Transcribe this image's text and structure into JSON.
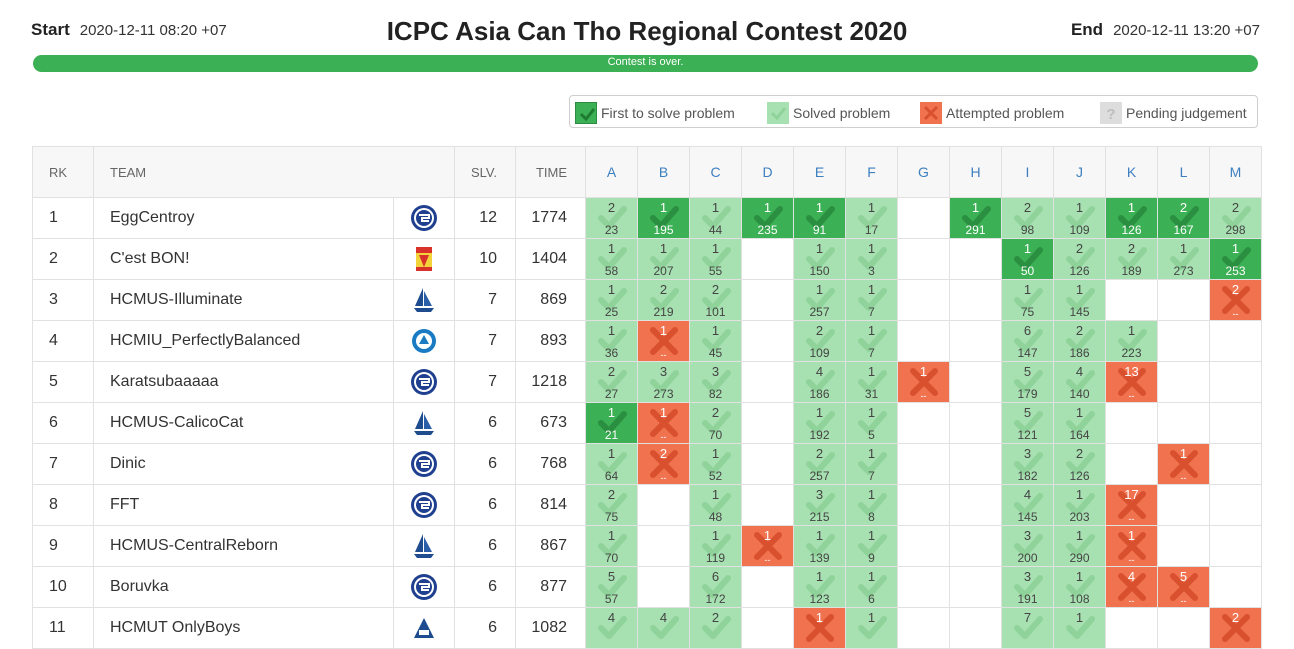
{
  "header": {
    "start_label": "Start",
    "start_value": "2020-12-11 08:20 +07",
    "title": "ICPC Asia Can Tho Regional Contest 2020",
    "end_label": "End",
    "end_value": "2020-12-11 13:20 +07",
    "progress_text": "Contest is over.",
    "progress_fraction": 1.0
  },
  "legend": {
    "first": "First to solve problem",
    "solved": "Solved problem",
    "attempted": "Attempted problem",
    "pending": "Pending judgement"
  },
  "colors": {
    "first": "#3cb054",
    "solved": "#a7e0b1",
    "attempted": "#f0724f",
    "pending": "#dddddd",
    "progress": "#3cb054",
    "header_link": "#3d7fbf"
  },
  "columns": {
    "rank": "RK",
    "team": "TEAM",
    "solved": "SLV.",
    "time": "TIME",
    "problems": [
      "A",
      "B",
      "C",
      "D",
      "E",
      "F",
      "G",
      "H",
      "I",
      "J",
      "K",
      "L",
      "M"
    ]
  },
  "rows": [
    {
      "rank": "1",
      "team": "EggCentroy",
      "logo": "university-logo-blue-circle",
      "solved": "12",
      "time": "1774",
      "cells": [
        [
          "S",
          "2",
          "23"
        ],
        [
          "F",
          "1",
          "195"
        ],
        [
          "S",
          "1",
          "44"
        ],
        [
          "F",
          "1",
          "235"
        ],
        [
          "F",
          "1",
          "91"
        ],
        [
          "S",
          "1",
          "17"
        ],
        null,
        [
          "F",
          "1",
          "291"
        ],
        [
          "S",
          "2",
          "98"
        ],
        [
          "S",
          "1",
          "109"
        ],
        [
          "F",
          "1",
          "126"
        ],
        [
          "F",
          "2",
          "167"
        ],
        [
          "S",
          "2",
          "298"
        ]
      ]
    },
    {
      "rank": "2",
      "team": "C'est BON!",
      "logo": "university-logo-red-yellow",
      "solved": "10",
      "time": "1404",
      "cells": [
        [
          "S",
          "1",
          "58"
        ],
        [
          "S",
          "1",
          "207"
        ],
        [
          "S",
          "1",
          "55"
        ],
        null,
        [
          "S",
          "1",
          "150"
        ],
        [
          "S",
          "1",
          "3"
        ],
        null,
        null,
        [
          "F",
          "1",
          "50"
        ],
        [
          "S",
          "2",
          "126"
        ],
        [
          "S",
          "2",
          "189"
        ],
        [
          "S",
          "1",
          "273"
        ],
        [
          "F",
          "1",
          "253"
        ]
      ]
    },
    {
      "rank": "3",
      "team": "HCMUS-Illuminate",
      "logo": "university-logo-blue-sail",
      "solved": "7",
      "time": "869",
      "cells": [
        [
          "S",
          "1",
          "25"
        ],
        [
          "S",
          "2",
          "219"
        ],
        [
          "S",
          "2",
          "101"
        ],
        null,
        [
          "S",
          "1",
          "257"
        ],
        [
          "S",
          "1",
          "7"
        ],
        null,
        null,
        [
          "S",
          "1",
          "75"
        ],
        [
          "S",
          "1",
          "145"
        ],
        null,
        null,
        [
          "A",
          "2",
          "--"
        ]
      ]
    },
    {
      "rank": "4",
      "team": "HCMIU_PerfectlyBalanced",
      "logo": "university-logo-blue-round",
      "solved": "7",
      "time": "893",
      "cells": [
        [
          "S",
          "1",
          "36"
        ],
        [
          "A",
          "1",
          "--"
        ],
        [
          "S",
          "1",
          "45"
        ],
        null,
        [
          "S",
          "2",
          "109"
        ],
        [
          "S",
          "1",
          "7"
        ],
        null,
        null,
        [
          "S",
          "6",
          "147"
        ],
        [
          "S",
          "2",
          "186"
        ],
        [
          "S",
          "1",
          "223"
        ],
        null,
        null
      ]
    },
    {
      "rank": "5",
      "team": "Karatsubaaaaa",
      "logo": "university-logo-blue-circle",
      "solved": "7",
      "time": "1218",
      "cells": [
        [
          "S",
          "2",
          "27"
        ],
        [
          "S",
          "3",
          "273"
        ],
        [
          "S",
          "3",
          "82"
        ],
        null,
        [
          "S",
          "4",
          "186"
        ],
        [
          "S",
          "1",
          "31"
        ],
        [
          "A",
          "1",
          "--"
        ],
        null,
        [
          "S",
          "5",
          "179"
        ],
        [
          "S",
          "4",
          "140"
        ],
        [
          "A",
          "13",
          "--"
        ],
        null,
        null
      ]
    },
    {
      "rank": "6",
      "team": "HCMUS-CalicoCat",
      "logo": "university-logo-blue-sail",
      "solved": "6",
      "time": "673",
      "cells": [
        [
          "F",
          "1",
          "21"
        ],
        [
          "A",
          "1",
          "--"
        ],
        [
          "S",
          "2",
          "70"
        ],
        null,
        [
          "S",
          "1",
          "192"
        ],
        [
          "S",
          "1",
          "5"
        ],
        null,
        null,
        [
          "S",
          "5",
          "121"
        ],
        [
          "S",
          "1",
          "164"
        ],
        null,
        null,
        null
      ]
    },
    {
      "rank": "7",
      "team": "Dinic",
      "logo": "university-logo-blue-circle",
      "solved": "6",
      "time": "768",
      "cells": [
        [
          "S",
          "1",
          "64"
        ],
        [
          "A",
          "2",
          "--"
        ],
        [
          "S",
          "1",
          "52"
        ],
        null,
        [
          "S",
          "2",
          "257"
        ],
        [
          "S",
          "1",
          "7"
        ],
        null,
        null,
        [
          "S",
          "3",
          "182"
        ],
        [
          "S",
          "2",
          "126"
        ],
        null,
        [
          "A",
          "1",
          "--"
        ],
        null
      ]
    },
    {
      "rank": "8",
      "team": "FFT",
      "logo": "university-logo-blue-circle",
      "solved": "6",
      "time": "814",
      "cells": [
        [
          "S",
          "2",
          "75"
        ],
        null,
        [
          "S",
          "1",
          "48"
        ],
        null,
        [
          "S",
          "3",
          "215"
        ],
        [
          "S",
          "1",
          "8"
        ],
        null,
        null,
        [
          "S",
          "4",
          "145"
        ],
        [
          "S",
          "1",
          "203"
        ],
        [
          "A",
          "17",
          "--"
        ],
        null,
        null
      ]
    },
    {
      "rank": "9",
      "team": "HCMUS-CentralReborn",
      "logo": "university-logo-blue-sail",
      "solved": "6",
      "time": "867",
      "cells": [
        [
          "S",
          "1",
          "70"
        ],
        null,
        [
          "S",
          "1",
          "119"
        ],
        [
          "A",
          "1",
          "--"
        ],
        [
          "S",
          "1",
          "139"
        ],
        [
          "S",
          "1",
          "9"
        ],
        null,
        null,
        [
          "S",
          "3",
          "200"
        ],
        [
          "S",
          "1",
          "290"
        ],
        [
          "A",
          "1",
          "--"
        ],
        null,
        null
      ]
    },
    {
      "rank": "10",
      "team": "Boruvka",
      "logo": "university-logo-blue-circle",
      "solved": "6",
      "time": "877",
      "cells": [
        [
          "S",
          "5",
          "57"
        ],
        null,
        [
          "S",
          "6",
          "172"
        ],
        null,
        [
          "S",
          "1",
          "123"
        ],
        [
          "S",
          "1",
          "6"
        ],
        null,
        null,
        [
          "S",
          "3",
          "191"
        ],
        [
          "S",
          "1",
          "108"
        ],
        [
          "A",
          "4",
          "--"
        ],
        [
          "A",
          "5",
          "--"
        ],
        null
      ]
    },
    {
      "rank": "11",
      "team": "HCMUT OnlyBoys",
      "logo": "university-logo-blue-bk",
      "solved": "6",
      "time": "1082",
      "cells": [
        [
          "S",
          "4",
          ""
        ],
        [
          "S",
          "4",
          ""
        ],
        [
          "S",
          "2",
          ""
        ],
        null,
        [
          "A",
          "1",
          ""
        ],
        [
          "S",
          "1",
          ""
        ],
        null,
        null,
        [
          "S",
          "7",
          ""
        ],
        [
          "S",
          "1",
          ""
        ],
        null,
        null,
        [
          "A",
          "2",
          ""
        ]
      ]
    }
  ]
}
